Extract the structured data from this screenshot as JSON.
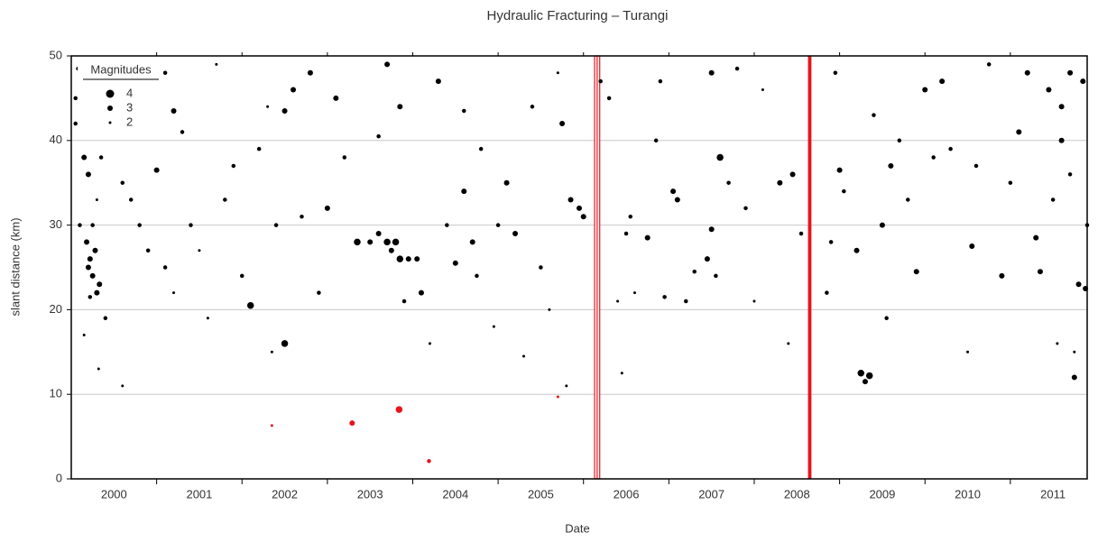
{
  "chart_data": {
    "type": "scatter",
    "title": "Hydraulic Fracturing – Turangi",
    "x_label": "Date",
    "y_label": "slant distance (km)",
    "xlim": [
      2000,
      2011.9
    ],
    "ylim": [
      0,
      50
    ],
    "yticks": [
      0,
      10,
      20,
      30,
      40,
      50
    ],
    "xticks": [
      {
        "value": 2000.5,
        "label": "2000"
      },
      {
        "value": 2001.5,
        "label": "2001"
      },
      {
        "value": 2002.5,
        "label": "2002"
      },
      {
        "value": 2003.5,
        "label": "2003"
      },
      {
        "value": 2004.5,
        "label": "2004"
      },
      {
        "value": 2005.5,
        "label": "2005"
      },
      {
        "value": 2006.5,
        "label": "2006"
      },
      {
        "value": 2007.5,
        "label": "2007"
      },
      {
        "value": 2008.5,
        "label": "2008"
      },
      {
        "value": 2009.5,
        "label": "2009"
      },
      {
        "value": 2010.5,
        "label": "2010"
      },
      {
        "value": 2011.5,
        "label": "2011"
      }
    ],
    "xminor": [
      2001,
      2002,
      2003,
      2004,
      2005,
      2006,
      2007,
      2008,
      2009,
      2010,
      2011
    ],
    "grid": true,
    "legend": {
      "title": "Magnitudes",
      "sizes": [
        4,
        3,
        2
      ],
      "position": "upper left"
    },
    "fracture_periods": [
      {
        "start": 2006.13,
        "end": 2006.19,
        "color": "#e8141a"
      },
      {
        "start": 2008.63,
        "end": 2008.67,
        "color": "#e8141a"
      }
    ],
    "series": [
      {
        "color": "#000000",
        "x": [
          2000.05,
          2000.05,
          2000.08,
          2000.1,
          2000.15,
          2000.2,
          2000.22,
          2000.25,
          2000.18,
          2000.3,
          2000.28,
          2000.2,
          2000.35,
          2000.3,
          2000.4,
          2000.32,
          2000.33,
          2000.25,
          2000.22,
          2000.15,
          2000.6,
          2000.6,
          2000.8,
          2000.9,
          2000.7,
          2001.0,
          2001.1,
          2001.2,
          2001.3,
          2001.1,
          2001.2,
          2001.4,
          2001.6,
          2001.7,
          2001.5,
          2001.8,
          2001.9,
          2002.0,
          2002.1,
          2002.2,
          2002.3,
          2002.35,
          2002.5,
          2002.4,
          2002.5,
          2002.6,
          2002.8,
          2002.7,
          2002.9,
          2003.0,
          2003.1,
          2003.2,
          2003.35,
          2003.5,
          2003.6,
          2003.7,
          2003.75,
          2003.8,
          2003.85,
          2003.9,
          2003.95,
          2004.05,
          2003.6,
          2003.7,
          2003.85,
          2004.1,
          2004.2,
          2004.3,
          2004.4,
          2004.5,
          2004.6,
          2004.6,
          2004.7,
          2004.75,
          2004.8,
          2004.95,
          2005.0,
          2005.1,
          2005.2,
          2005.3,
          2005.4,
          2005.5,
          2005.6,
          2005.7,
          2005.75,
          2005.8,
          2005.85,
          2005.95,
          2006.0,
          2006.2,
          2006.3,
          2006.4,
          2006.45,
          2006.5,
          2006.55,
          2006.6,
          2006.75,
          2006.85,
          2006.9,
          2006.95,
          2007.05,
          2007.1,
          2007.2,
          2007.3,
          2007.45,
          2007.5,
          2007.5,
          2007.55,
          2007.6,
          2007.7,
          2007.8,
          2007.9,
          2008.0,
          2008.1,
          2008.3,
          2008.4,
          2008.45,
          2008.55,
          2008.85,
          2008.9,
          2008.95,
          2009.0,
          2009.05,
          2009.2,
          2009.25,
          2009.3,
          2009.35,
          2009.4,
          2009.5,
          2009.55,
          2009.6,
          2009.7,
          2009.8,
          2009.9,
          2010.0,
          2010.1,
          2010.2,
          2010.3,
          2010.5,
          2010.55,
          2010.6,
          2010.75,
          2010.9,
          2011.0,
          2011.1,
          2011.2,
          2011.3,
          2011.35,
          2011.45,
          2011.5,
          2011.55,
          2011.6,
          2011.7,
          2011.75,
          2011.8,
          2011.75,
          2011.85,
          2011.6,
          2011.7,
          2011.9,
          2011.88
        ],
        "values": [
          45,
          42,
          48.5,
          30,
          38,
          36,
          26,
          24,
          28,
          22,
          27,
          25,
          38,
          33,
          19,
          13,
          23,
          30,
          21.5,
          17,
          11,
          35,
          30,
          27,
          33,
          36.5,
          48,
          43.5,
          41,
          25,
          22,
          30,
          19,
          49,
          27,
          33,
          37,
          24,
          20.5,
          39,
          44,
          15,
          16,
          30,
          43.5,
          46,
          48,
          31,
          22,
          32,
          45,
          38,
          28,
          28,
          29,
          28,
          27,
          28,
          26,
          21,
          26,
          26,
          40.5,
          49,
          44,
          22,
          16,
          47,
          30,
          25.5,
          34,
          43.5,
          28,
          24,
          39,
          18,
          30,
          35,
          29,
          14.5,
          44,
          25,
          20,
          48,
          42,
          11,
          33,
          32,
          31,
          47,
          45,
          21,
          12.5,
          29,
          31,
          22,
          28.5,
          40,
          47,
          21.5,
          34,
          33,
          21,
          24.5,
          26,
          29.5,
          48,
          24,
          38,
          35,
          48.5,
          32,
          21,
          46,
          35,
          16,
          36,
          29,
          22,
          28,
          48,
          36.5,
          34,
          27,
          12.5,
          11.5,
          12.2,
          43,
          30,
          19,
          37,
          40,
          33,
          24.5,
          46,
          38,
          47,
          39,
          15,
          27.5,
          37,
          49,
          24,
          35,
          41,
          48,
          28.5,
          24.5,
          46,
          33,
          16,
          40,
          48,
          12,
          23,
          15,
          47,
          44,
          36,
          30,
          22.5
        ],
        "sizes": [
          2.5,
          2.5,
          2.5,
          2.5,
          3,
          3,
          3,
          3,
          3,
          3,
          3,
          3,
          2.5,
          2,
          2.5,
          2,
          3,
          2.5,
          2.5,
          2,
          2,
          2.5,
          2.5,
          2.5,
          2.5,
          3,
          2.5,
          3,
          2.5,
          2.5,
          2,
          2.5,
          2,
          2,
          2,
          2.5,
          2.5,
          2.5,
          3.5,
          2.5,
          2,
          2,
          3.5,
          2.5,
          3,
          3,
          3,
          2.5,
          2.5,
          3,
          3,
          2.5,
          3.5,
          3,
          3,
          3.5,
          3,
          3.5,
          3.5,
          2.5,
          3,
          3,
          2.5,
          3,
          3,
          3,
          2,
          3,
          2.5,
          3,
          3,
          2.5,
          3,
          2.5,
          2.5,
          2,
          2.5,
          3,
          3,
          2,
          2.5,
          2.5,
          2,
          2,
          3,
          2,
          3,
          3,
          3,
          2.5,
          2.5,
          2,
          2,
          2.5,
          2.5,
          2,
          3,
          2.5,
          2.5,
          2.5,
          3,
          3,
          2.5,
          2.5,
          3,
          3,
          3,
          2.5,
          3.5,
          2.5,
          2.5,
          2.5,
          2,
          2,
          3,
          2,
          3,
          2.5,
          2.5,
          2.5,
          2.5,
          3,
          2.5,
          3,
          3.5,
          3,
          3.5,
          2.5,
          3,
          2.5,
          3,
          2.5,
          2.5,
          3,
          3,
          2.5,
          3,
          2.5,
          2,
          3,
          2.5,
          2.5,
          3,
          2.5,
          3,
          3,
          3,
          3,
          3,
          2.5,
          2,
          3,
          3,
          3,
          3,
          2,
          3,
          3,
          2.5,
          2.5,
          3
        ]
      },
      {
        "color": "#e8141a",
        "x": [
          2002.35,
          2003.29,
          2003.84,
          2004.19,
          2005.7
        ],
        "values": [
          6.3,
          6.6,
          8.2,
          2.1,
          9.7
        ],
        "sizes": [
          2,
          3,
          3.5,
          2.5,
          2
        ]
      }
    ]
  }
}
